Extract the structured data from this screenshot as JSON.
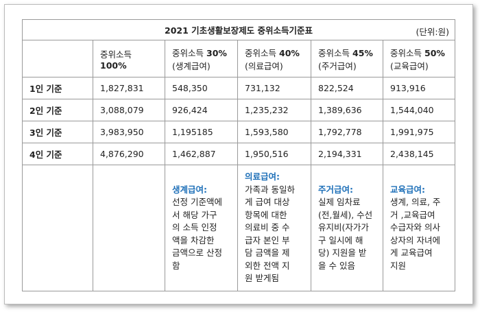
{
  "title": "2021 기초생활보장제도 중위소득기준표",
  "unit": "(단위:원)",
  "headers": [
    {
      "main": "중위소득",
      "pct": "100%"
    },
    {
      "main": "중위소득",
      "pct": "30%",
      "sub": "(생계급여)"
    },
    {
      "main": "중위소득",
      "pct": "40%",
      "sub": "(의료급여)"
    },
    {
      "main": "중위소득",
      "pct": "45%",
      "sub": "(주거급여)"
    },
    {
      "main": "중위소득",
      "pct": "50%",
      "sub": "(교육급여)"
    }
  ],
  "rows": [
    {
      "label": "1인 기준",
      "values": [
        "1,827,831",
        "548,350",
        "731,132",
        "822,524",
        "913,916"
      ]
    },
    {
      "label": "2인 기준",
      "values": [
        "3,088,079",
        "926,424",
        "1,235,232",
        "1,389,636",
        "1,544,040"
      ]
    },
    {
      "label": "3인 기준",
      "values": [
        "3,983,950",
        "1,195185",
        "1,593,580",
        "1,792,778",
        "1,991,975"
      ]
    },
    {
      "label": "4인 기준",
      "values": [
        "4,876,290",
        "1,462,887",
        "1,950,516",
        "2,194,331",
        "2,438,145"
      ]
    }
  ],
  "notes": [
    {
      "title": "생계급여:",
      "lines": [
        "선정 기준액에",
        "서 해당 가구",
        "의 소득 인정",
        "액을 차감한",
        "금액으로 산정",
        "함"
      ]
    },
    {
      "title": "의료급여:",
      "lines": [
        "가족과 동일하",
        "게 급여 대상",
        "항목에 대한",
        "의료비 중 수",
        "급자 본인 부",
        "담 금액을 제",
        "외한 전액 지",
        "원 받게됨"
      ]
    },
    {
      "title": "주거급여:",
      "lines": [
        "실제 임차료",
        "(전,월세), 수선",
        "유지비(자가가",
        "구 일시에 해",
        "당) 지원을 받",
        "을 수 있음"
      ]
    },
    {
      "title": "교육급여:",
      "lines": [
        "생계, 의료, 주",
        "거 ,교육급여",
        "수급자와 의사",
        "상자의 자녀에",
        "게 교육급여",
        "지원"
      ]
    }
  ]
}
